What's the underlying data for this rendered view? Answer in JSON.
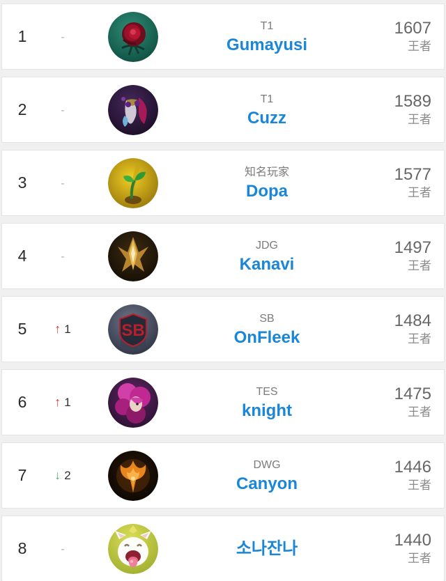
{
  "colors": {
    "accent_blue": "#1a86d8",
    "up_red": "#e03a3a",
    "down_green": "#47b163",
    "card_bg": "#ffffff",
    "page_bg": "#f0f0f0"
  },
  "icons": {
    "up_arrow": "↑",
    "down_arrow": "↓"
  },
  "rows": [
    {
      "rank": "1",
      "change": {
        "dir": "none",
        "text": "-"
      },
      "avatar": "rose",
      "avatar_icon": "rose-avatar-icon",
      "team": "T1",
      "player": "Gumayusi",
      "score": "1607",
      "tier": "王者"
    },
    {
      "rank": "2",
      "change": {
        "dir": "none",
        "text": "-"
      },
      "avatar": "mask",
      "avatar_icon": "mask-avatar-icon",
      "team": "T1",
      "player": "Cuzz",
      "score": "1589",
      "tier": "王者"
    },
    {
      "rank": "3",
      "change": {
        "dir": "none",
        "text": "-"
      },
      "avatar": "sprout",
      "avatar_icon": "sprout-avatar-icon",
      "team": "知名玩家",
      "player": "Dopa",
      "score": "1577",
      "tier": "王者"
    },
    {
      "rank": "4",
      "change": {
        "dir": "none",
        "text": "-"
      },
      "avatar": "crest",
      "avatar_icon": "gold-crest-avatar-icon",
      "team": "JDG",
      "player": "Kanavi",
      "score": "1497",
      "tier": "王者"
    },
    {
      "rank": "5",
      "change": {
        "dir": "up",
        "amount": "1"
      },
      "avatar": "sb",
      "avatar_icon": "sb-logo-avatar-icon",
      "team": "SB",
      "player": "OnFleek",
      "score": "1484",
      "tier": "王者"
    },
    {
      "rank": "6",
      "change": {
        "dir": "up",
        "amount": "1"
      },
      "avatar": "xayah",
      "avatar_icon": "xayah-avatar-icon",
      "team": "TES",
      "player": "knight",
      "score": "1475",
      "tier": "王者"
    },
    {
      "rank": "7",
      "change": {
        "dir": "down",
        "amount": "2"
      },
      "avatar": "flame",
      "avatar_icon": "flame-avatar-icon",
      "team": "DWG",
      "player": "Canyon",
      "score": "1446",
      "tier": "王者"
    },
    {
      "rank": "8",
      "change": {
        "dir": "none",
        "text": "-"
      },
      "avatar": "poro",
      "avatar_icon": "poro-avatar-icon",
      "team": "",
      "player": "소나잔나",
      "score": "1440",
      "tier": "王者"
    }
  ]
}
